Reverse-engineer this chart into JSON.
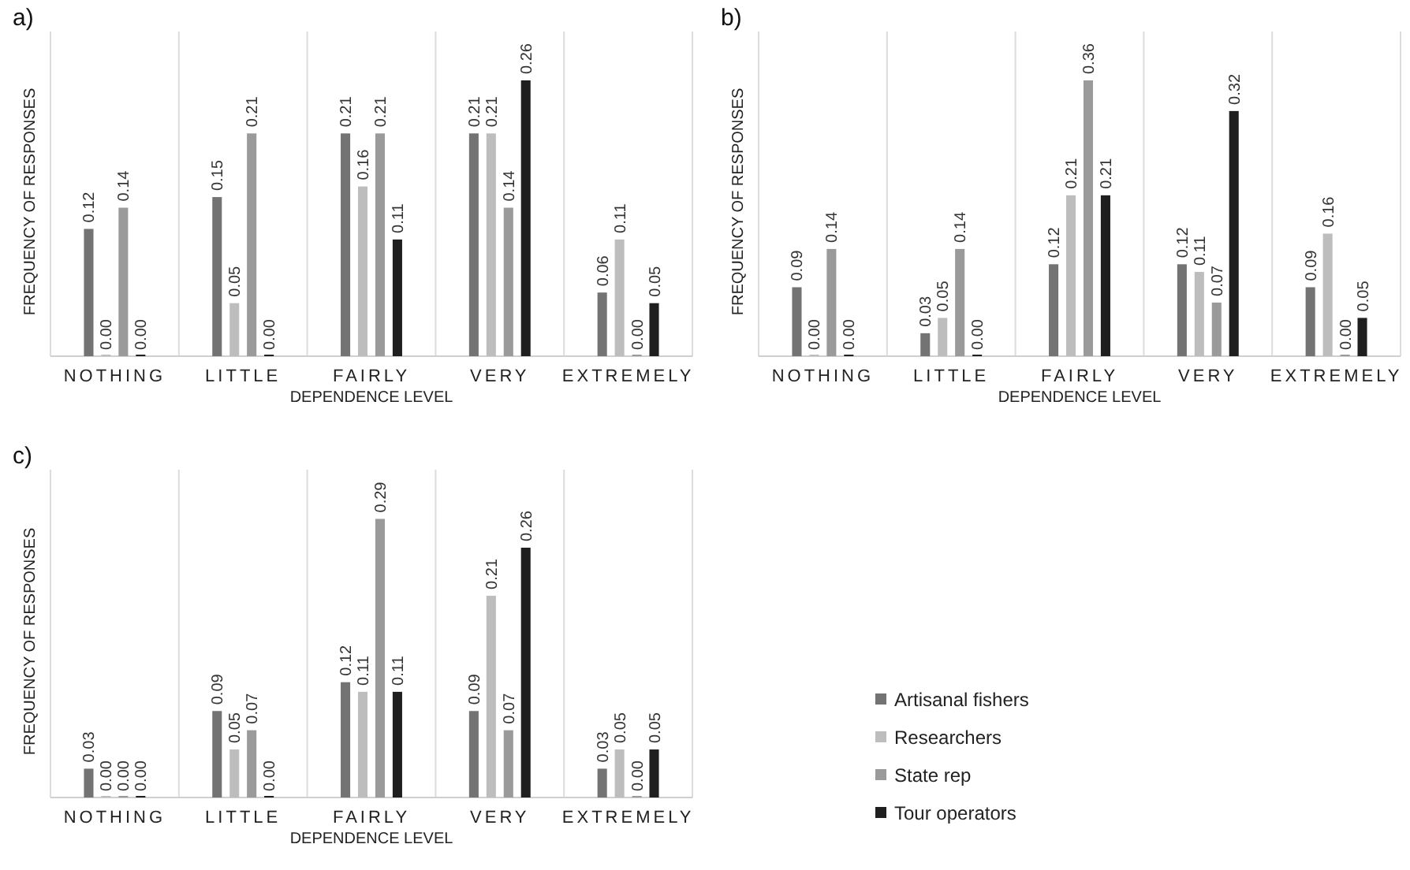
{
  "chart_data": [
    {
      "type": "bar",
      "title": "a)",
      "xlabel": "DEPENDENCE LEVEL",
      "ylabel": "FREQUENCY OF RESPONSES",
      "categories": [
        "NOTHING",
        "LITTLE",
        "FAIRLY",
        "VERY",
        "EXTREMELY"
      ],
      "legend": false,
      "series": [
        {
          "color": "#737373",
          "values": [
            0.12,
            0.15,
            0.21,
            0.21,
            0.06
          ],
          "value_labels": [
            "0.12",
            "0.15",
            "0.21",
            "0.21",
            "0.06"
          ]
        },
        {
          "color": "#bdbdbd",
          "values": [
            0.0,
            0.05,
            0.16,
            0.21,
            0.11
          ],
          "value_labels": [
            "0.00",
            "0.05",
            "0.16",
            "0.21",
            "0.11"
          ]
        },
        {
          "color": "#9a9a9a",
          "values": [
            0.14,
            0.21,
            0.21,
            0.14,
            0.0
          ],
          "value_labels": [
            "0.14",
            "0.21",
            "0.21",
            "0.14",
            "0.00"
          ]
        },
        {
          "color": "#1f1f1f",
          "values": [
            0.0,
            0.0,
            0.11,
            0.26,
            0.05
          ],
          "value_labels": [
            "0.00",
            "0.00",
            "0.11",
            "0.26",
            "0.05"
          ]
        }
      ]
    },
    {
      "type": "bar",
      "title": "b)",
      "xlabel": "DEPENDENCE LEVEL",
      "ylabel": "FREQUENCY OF RESPONSES",
      "categories": [
        "NOTHING",
        "LITTLE",
        "FAIRLY",
        "VERY",
        "EXTREMELY"
      ],
      "legend": false,
      "series": [
        {
          "color": "#737373",
          "values": [
            0.09,
            0.03,
            0.12,
            0.12,
            0.09
          ],
          "value_labels": [
            "0.09",
            "0.03",
            "0.12",
            "0.12",
            "0.09"
          ]
        },
        {
          "color": "#bdbdbd",
          "values": [
            0.0,
            0.05,
            0.21,
            0.11,
            0.16
          ],
          "value_labels": [
            "0.00",
            "0.05",
            "0.21",
            "0.11",
            "0.16"
          ]
        },
        {
          "color": "#9a9a9a",
          "values": [
            0.14,
            0.14,
            0.36,
            0.07,
            0.0
          ],
          "value_labels": [
            "0.14",
            "0.14",
            "0.36",
            "0.07",
            "0.00"
          ]
        },
        {
          "color": "#1f1f1f",
          "values": [
            0.0,
            0.0,
            0.21,
            0.32,
            0.05
          ],
          "value_labels": [
            "0.00",
            "0.00",
            "0.21",
            "0.32",
            "0.05"
          ]
        }
      ]
    },
    {
      "type": "bar",
      "title": "c)",
      "xlabel": "DEPENDENCE LEVEL",
      "ylabel": "FREQUENCY OF RESPONSES",
      "categories": [
        "NOTHING",
        "LITTLE",
        "FAIRLY",
        "VERY",
        "EXTREMELY"
      ],
      "legend": "right",
      "series": [
        {
          "name": "Artisanal fishers",
          "color": "#737373",
          "values": [
            0.03,
            0.09,
            0.12,
            0.09,
            0.03
          ],
          "value_labels": [
            "0.03",
            "0.09",
            "0.12",
            "0.09",
            "0.03"
          ]
        },
        {
          "name": "Researchers",
          "color": "#bdbdbd",
          "values": [
            0.0,
            0.05,
            0.11,
            0.21,
            0.05
          ],
          "value_labels": [
            "0.00",
            "0.05",
            "0.11",
            "0.21",
            "0.05"
          ]
        },
        {
          "name": "State rep",
          "color": "#9a9a9a",
          "values": [
            0.0,
            0.07,
            0.29,
            0.07,
            0.0
          ],
          "value_labels": [
            "0.00",
            "0.07",
            "0.29",
            "0.07",
            "0.00"
          ]
        },
        {
          "name": "Tour operators",
          "color": "#1f1f1f",
          "values": [
            0.0,
            0.0,
            0.11,
            0.26,
            0.05
          ],
          "value_labels": [
            "0.00",
            "0.00",
            "0.11",
            "0.26",
            "0.05"
          ]
        }
      ]
    }
  ]
}
